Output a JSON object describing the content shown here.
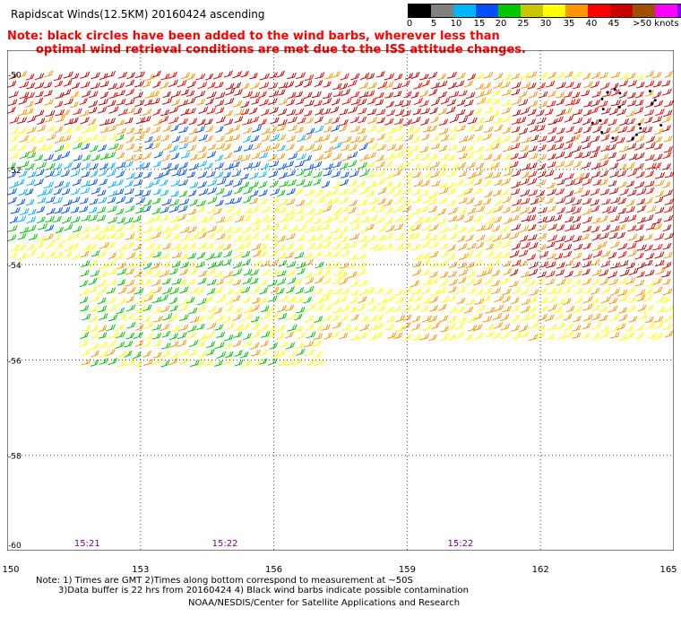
{
  "header": {
    "title": "Rapidscat Winds(12.5KM) 20160424 ascending",
    "note_line1": "Note: black circles have been added to the wind barbs, wherever less than",
    "note_line2": "optimal wind retrieval conditions are met due to the ISS attitude changes."
  },
  "legend": {
    "segments": [
      {
        "color": "#000000"
      },
      {
        "color": "#808080"
      },
      {
        "color": "#00b4ff"
      },
      {
        "color": "#0050ff"
      },
      {
        "color": "#00c800"
      },
      {
        "color": "#c8c800"
      },
      {
        "color": "#ffff00"
      },
      {
        "color": "#ff9600"
      },
      {
        "color": "#ff0000"
      },
      {
        "color": "#c80000"
      },
      {
        "color": "#a05000"
      },
      {
        "color": "#ff00ff"
      },
      {
        "color": "#8000ff"
      }
    ],
    "labels": [
      "0",
      "5",
      "10",
      "15",
      "20",
      "25",
      "30",
      "35",
      "40",
      "45",
      ">50 knots"
    ]
  },
  "map": {
    "lat_labels": [
      "-50",
      "-52",
      "-54",
      "-56",
      "-58",
      "-60"
    ],
    "lon_labels": [
      "150",
      "153",
      "156",
      "159",
      "162",
      "165"
    ],
    "time_labels": [
      {
        "text": "15:21",
        "lon": 151.8
      },
      {
        "text": "15:22",
        "lon": 154.9
      },
      {
        "text": "15:22",
        "lon": 160.2
      }
    ]
  },
  "chart_data": {
    "type": "scatter",
    "title": "Rapidscat Winds(12.5KM) 20160424 ascending",
    "xlim": [
      150,
      165
    ],
    "ylim": [
      -60,
      -49.5
    ],
    "x_ticks": [
      150,
      153,
      156,
      159,
      162,
      165
    ],
    "y_ticks": [
      -50,
      -52,
      -54,
      -56,
      -58,
      -60
    ],
    "grid": true
  },
  "footer": {
    "line1": "Note: 1) Times are GMT 2)Times along bottom correspond to measurement at ~50S",
    "line2": "3)Data buffer is 22 hrs from 20160424 4) Black wind barbs indicate possible contamination",
    "line3": "NOAA/NESDIS/Center for Satellite Applications and Research"
  }
}
